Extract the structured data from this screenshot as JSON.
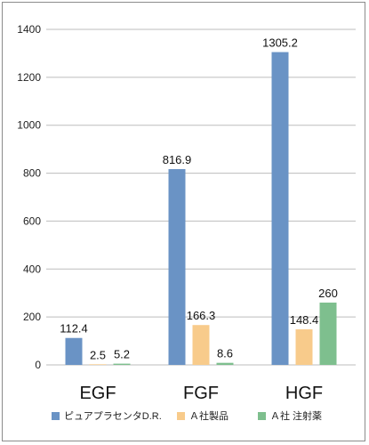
{
  "chart_data": {
    "type": "bar",
    "categories": [
      "EGF",
      "FGF",
      "HGF"
    ],
    "series": [
      {
        "name": "ピュアプラセンタD.R.",
        "values": [
          112.4,
          816.9,
          1305.2
        ],
        "labels": [
          "112.4",
          "816.9",
          "1305.2"
        ],
        "color": "#6a93c5"
      },
      {
        "name": "Ａ社製品",
        "values": [
          2.5,
          166.3,
          148.4
        ],
        "labels": [
          "2.5",
          "166.3",
          "148.4"
        ],
        "color": "#f8cb8b"
      },
      {
        "name": "Ａ社 注射薬",
        "values": [
          5.2,
          8.6,
          260
        ],
        "labels": [
          "5.2",
          "8.6",
          "260"
        ],
        "color": "#7ebf8e"
      }
    ],
    "y_ticks": [
      "0",
      "200",
      "400",
      "600",
      "800",
      "1000",
      "1200",
      "1400"
    ],
    "ylim": [
      0,
      1400
    ],
    "grid": true,
    "legend_position": "bottom"
  }
}
